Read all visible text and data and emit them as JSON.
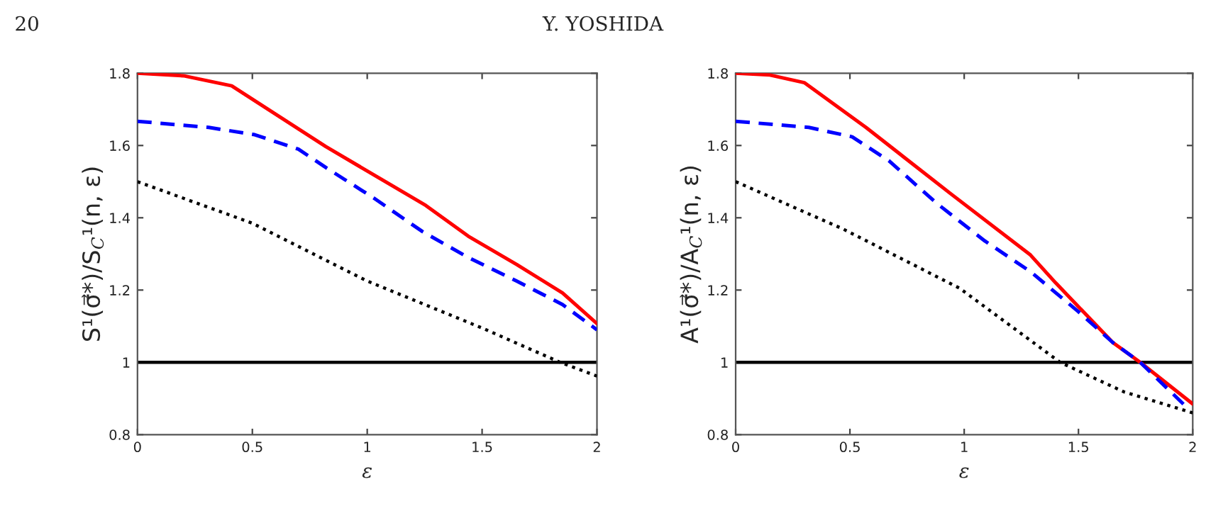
{
  "chart_data": [
    {
      "type": "line",
      "ylabel": "S¹(σ⃗*)/S$_{C}$¹(n, ε)",
      "xlabel": "ε",
      "annotations": [
        "20",
        "Y. YOSHIDA"
      ],
      "xlim": [
        0,
        2
      ],
      "ylim": [
        0.8,
        1.8
      ],
      "xticks": [
        0,
        0.5,
        1,
        1.5,
        2
      ],
      "yticks": [
        0.8,
        1,
        1.2,
        1.4,
        1.6,
        1.8
      ],
      "grid": false,
      "legend": false,
      "ref_lines": [
        {
          "axis": "y",
          "value": 1,
          "color": "#000000",
          "line_style": "solid"
        }
      ],
      "series": [
        {
          "color": "#ff0000",
          "line_style": "solid",
          "x": [
            0,
            0.2,
            0.41,
            0.82,
            1.255,
            1.44,
            1.65,
            1.85,
            2
          ],
          "values": [
            1.8,
            1.793,
            1.765,
            1.597,
            1.434,
            1.349,
            1.271,
            1.192,
            1.107
          ]
        },
        {
          "color": "#0000ff",
          "line_style": "dashed",
          "x": [
            0,
            0.31,
            0.51,
            0.7,
            0.82,
            1.03,
            1.24,
            1.44,
            1.65,
            1.85,
            2
          ],
          "values": [
            1.667,
            1.65,
            1.63,
            1.59,
            1.539,
            1.454,
            1.362,
            1.29,
            1.225,
            1.16,
            1.09
          ]
        },
        {
          "color": "#000000",
          "line_style": "dotted",
          "x": [
            0,
            0.5,
            1,
            1.5,
            1.84,
            2
          ],
          "values": [
            1.5,
            1.385,
            1.225,
            1.095,
            1.0,
            0.962
          ]
        }
      ]
    },
    {
      "type": "line",
      "ylabel": "A¹(σ⃗*)/A$_{C}$¹(n, ε)",
      "xlabel": "ε",
      "xlim": [
        0,
        2
      ],
      "ylim": [
        0.8,
        1.8
      ],
      "xticks": [
        0,
        0.5,
        1,
        1.5,
        2
      ],
      "yticks": [
        0.8,
        1,
        1.2,
        1.4,
        1.6,
        1.8
      ],
      "grid": false,
      "legend": false,
      "ref_lines": [
        {
          "axis": "y",
          "value": 1,
          "color": "#000000",
          "line_style": "solid"
        }
      ],
      "series": [
        {
          "color": "#ff0000",
          "line_style": "solid",
          "x": [
            0,
            0.15,
            0.3,
            0.57,
            0.94,
            1.29,
            1.4,
            1.65,
            1.77,
            2
          ],
          "values": [
            1.8,
            1.795,
            1.774,
            1.65,
            1.467,
            1.297,
            1.22,
            1.055,
            1.0,
            0.885
          ]
        },
        {
          "color": "#0000ff",
          "line_style": "dashed",
          "x": [
            0,
            0.32,
            0.51,
            0.67,
            0.88,
            1.09,
            1.29,
            1.5,
            1.65,
            1.77,
            1.97
          ],
          "values": [
            1.667,
            1.65,
            1.624,
            1.558,
            1.44,
            1.336,
            1.251,
            1.14,
            1.055,
            1.0,
            0.878
          ]
        },
        {
          "color": "#000000",
          "line_style": "dotted",
          "x": [
            0,
            0.47,
            0.98,
            1.42,
            1.7,
            2
          ],
          "values": [
            1.5,
            1.369,
            1.205,
            1.0,
            0.918,
            0.86
          ]
        }
      ]
    }
  ]
}
